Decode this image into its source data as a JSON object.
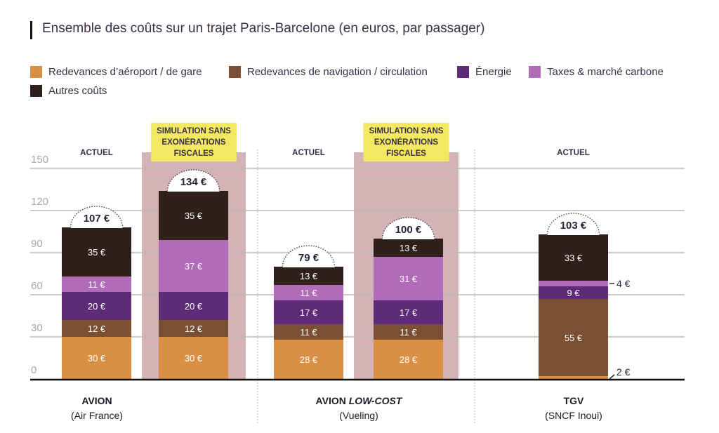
{
  "title": {
    "main": "Ensemble des coûts sur un trajet Paris-Barcelone",
    "sub": " (en euros, par passager)"
  },
  "legend": [
    {
      "key": "aeroport",
      "label": "Redevances d’aéroport / de gare",
      "color": "#d99044"
    },
    {
      "key": "navigation",
      "label": "Redevances de navigation / circulation",
      "color": "#7a4f33"
    },
    {
      "key": "energie",
      "label": "Énergie",
      "color": "#5e2b78"
    },
    {
      "key": "taxes",
      "label": "Taxes & marché carbone",
      "color": "#b06cb8"
    },
    {
      "key": "autres",
      "label": "Autres coûts",
      "color": "#2f201b"
    }
  ],
  "chart_data": {
    "type": "bar",
    "subtype": "stacked",
    "title": "Ensemble des coûts sur un trajet Paris-Barcelone (en euros, par passager)",
    "xlabel": "",
    "ylabel": "",
    "ylim": [
      0,
      150
    ],
    "yticks": [
      0,
      30,
      60,
      90,
      120,
      150
    ],
    "grid": true,
    "legend_position": "top-left",
    "unit_suffix": " €",
    "series_order": [
      "Redevances d’aéroport / de gare",
      "Redevances de navigation / circulation",
      "Énergie",
      "Taxes & marché carbone",
      "Autres coûts"
    ],
    "groups": [
      {
        "name": "AVION",
        "name_italic": "",
        "subtitle": "(Air France)"
      },
      {
        "name": "AVION ",
        "name_italic": "LOW-COST",
        "subtitle": "(Vueling)"
      },
      {
        "name": "TGV",
        "name_italic": "",
        "subtitle": "(SNCF Inoui)"
      }
    ],
    "bars": [
      {
        "group": 0,
        "scenario": "ACTUEL",
        "highlight": false,
        "values": [
          30,
          12,
          20,
          11,
          35
        ],
        "total": "107 €"
      },
      {
        "group": 0,
        "scenario": "SIMULATION SANS EXONÉRATIONS FISCALES",
        "highlight": true,
        "values": [
          30,
          12,
          20,
          37,
          35
        ],
        "total": "134 €"
      },
      {
        "group": 1,
        "scenario": "ACTUEL",
        "highlight": false,
        "values": [
          28,
          11,
          17,
          11,
          13
        ],
        "total": "79 €"
      },
      {
        "group": 1,
        "scenario": "SIMULATION SANS EXONÉRATIONS FISCALES",
        "highlight": true,
        "values": [
          28,
          11,
          17,
          31,
          13
        ],
        "total": "100 €"
      },
      {
        "group": 2,
        "scenario": "ACTUEL",
        "highlight": false,
        "values": [
          2,
          55,
          9,
          4,
          33
        ],
        "total": "103 €",
        "outside_labels": [
          0,
          3
        ]
      }
    ],
    "scenario_labels": {
      "actuel": "ACTUEL",
      "simulation": [
        "SIMULATION SANS",
        "EXONÉRATIONS",
        "FISCALES"
      ]
    }
  }
}
